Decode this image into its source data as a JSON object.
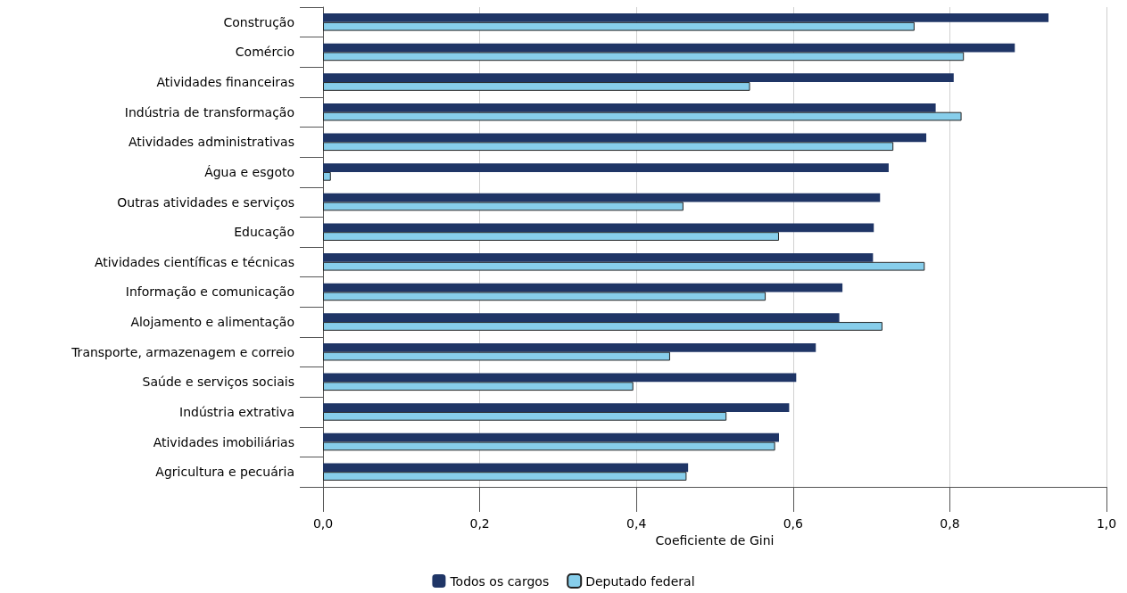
{
  "chart_data": {
    "type": "bar",
    "orientation": "horizontal",
    "xlabel": "Coeficiente de Gini",
    "categories": [
      "Construção",
      "Comércio",
      "Atividades financeiras",
      "Indústria de transformação",
      "Atividades administrativas",
      "Água e esgoto",
      "Outras atividades e serviços",
      "Educação",
      "Atividades científicas e técnicas",
      "Informação e comunicação",
      "Alojamento e alimentação",
      "Transporte, armazenagem e correio",
      "Saúde e serviços sociais",
      "Indústria extrativa",
      "Atividades imobiliárias",
      "Agricultura e pecuária"
    ],
    "series": [
      {
        "name": "Todos os cargos",
        "color": "#1f3566",
        "values": [
          0.926,
          0.883,
          0.805,
          0.782,
          0.77,
          0.722,
          0.711,
          0.703,
          0.702,
          0.663,
          0.659,
          0.629,
          0.604,
          0.595,
          0.582,
          0.466
        ]
      },
      {
        "name": "Deputado federal",
        "color": "#87ceeb",
        "values": [
          0.755,
          0.818,
          0.545,
          0.815,
          0.728,
          0.01,
          0.46,
          0.582,
          0.768,
          0.565,
          0.714,
          0.443,
          0.396,
          0.515,
          0.577,
          0.464
        ]
      }
    ],
    "xlim": [
      0,
      1
    ],
    "xticks": [
      {
        "value": 0,
        "label": "0,0"
      },
      {
        "value": 0.2,
        "label": "0,2"
      },
      {
        "value": 0.4,
        "label": "0,4"
      },
      {
        "value": 0.6,
        "label": "0,6"
      },
      {
        "value": 0.8,
        "label": "0,8"
      },
      {
        "value": 1,
        "label": "1,0"
      }
    ],
    "grid": "x",
    "legend": "bottom"
  }
}
